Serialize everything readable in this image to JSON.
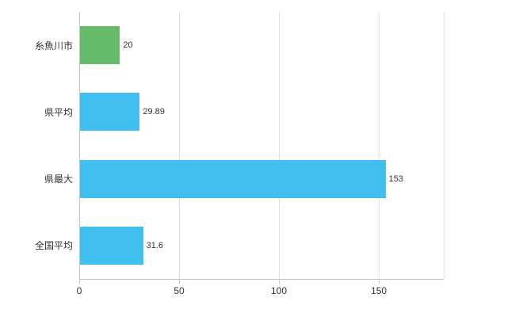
{
  "chart_data": {
    "type": "bar",
    "orientation": "horizontal",
    "title": "",
    "xlabel": "",
    "ylabel": "",
    "categories": [
      "糸魚川市",
      "県平均",
      "県最大",
      "全国平均"
    ],
    "values": [
      20,
      29.89,
      153,
      31.6
    ],
    "value_labels": [
      "20",
      "29.89",
      "153",
      "31.6"
    ],
    "bar_colors": [
      "#66bb6a",
      "#41c0f0",
      "#41c0f0",
      "#41c0f0"
    ],
    "xlim": [
      0,
      182.5
    ],
    "x_ticks": [
      0,
      50,
      100,
      150
    ],
    "grid": true,
    "legend": "none"
  },
  "style": {
    "grid_color": "#dddddd",
    "axis_color": "#c4c4c4",
    "text_color": "#333333",
    "background": "#ffffff"
  }
}
